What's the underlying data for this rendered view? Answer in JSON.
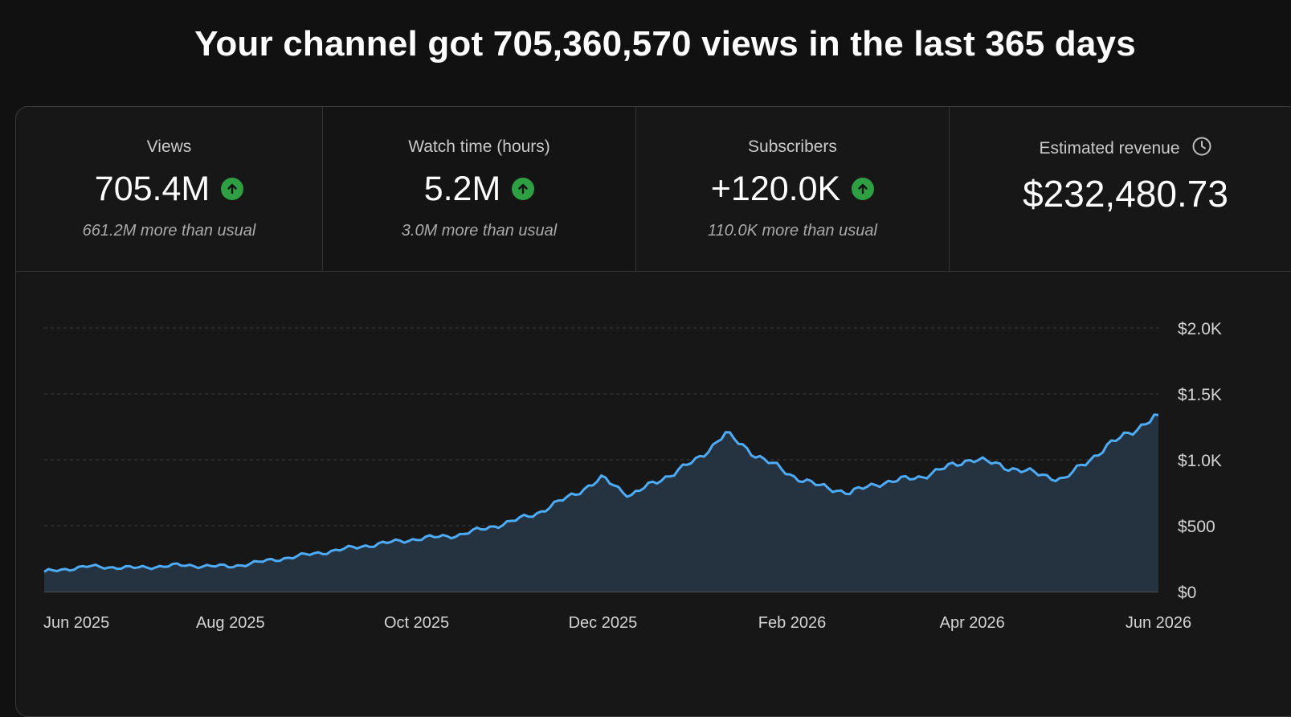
{
  "page": {
    "title": "Your channel got 705,360,570 views in the last 365 days"
  },
  "metrics": [
    {
      "label": "Views",
      "value": "705.4M",
      "sub": "661.2M more than usual",
      "trend": "up"
    },
    {
      "label": "Watch time (hours)",
      "value": "5.2M",
      "sub": "3.0M more than usual",
      "trend": "up"
    },
    {
      "label": "Subscribers",
      "value": "+120.0K",
      "sub": "110.0K more than usual",
      "trend": "up"
    },
    {
      "label": "Estimated revenue",
      "value": "$232,480.73",
      "icon": "clock-icon"
    }
  ],
  "colors": {
    "line": "#4dabf7",
    "area": "#253341",
    "up_badge": "#2ea043",
    "gridline": "#3c3c3c"
  },
  "chart_data": {
    "type": "area",
    "series": [
      {
        "x": [
          "2025-06-01",
          "2025-06-15",
          "2025-07-01",
          "2025-07-15",
          "2025-08-01",
          "2025-08-15",
          "2025-09-01",
          "2025-09-15",
          "2025-10-01",
          "2025-10-15",
          "2025-11-01",
          "2025-11-10",
          "2025-11-20",
          "2025-12-01",
          "2025-12-10",
          "2025-12-20",
          "2026-01-01",
          "2026-01-10",
          "2026-01-20",
          "2026-02-01",
          "2026-02-10",
          "2026-02-20",
          "2026-03-01",
          "2026-03-15",
          "2026-04-01",
          "2026-04-15",
          "2026-05-01",
          "2026-05-15",
          "2026-06-01"
        ],
        "y": [
          150,
          190,
          180,
          200,
          190,
          240,
          300,
          350,
          400,
          430,
          530,
          600,
          720,
          860,
          730,
          850,
          1000,
          1200,
          1040,
          880,
          800,
          750,
          820,
          870,
          1010,
          930,
          850,
          1100,
          1340
        ]
      }
    ],
    "x_ticks": [
      "Jun 2025",
      "Aug 2025",
      "Oct 2025",
      "Dec 2025",
      "Feb 2026",
      "Apr 2026",
      "Jun 2026"
    ],
    "y_ticks": [
      "$0",
      "$500",
      "$1.0K",
      "$1.5K",
      "$2.0K"
    ],
    "ylim": [
      0,
      2000
    ],
    "grid": true
  }
}
